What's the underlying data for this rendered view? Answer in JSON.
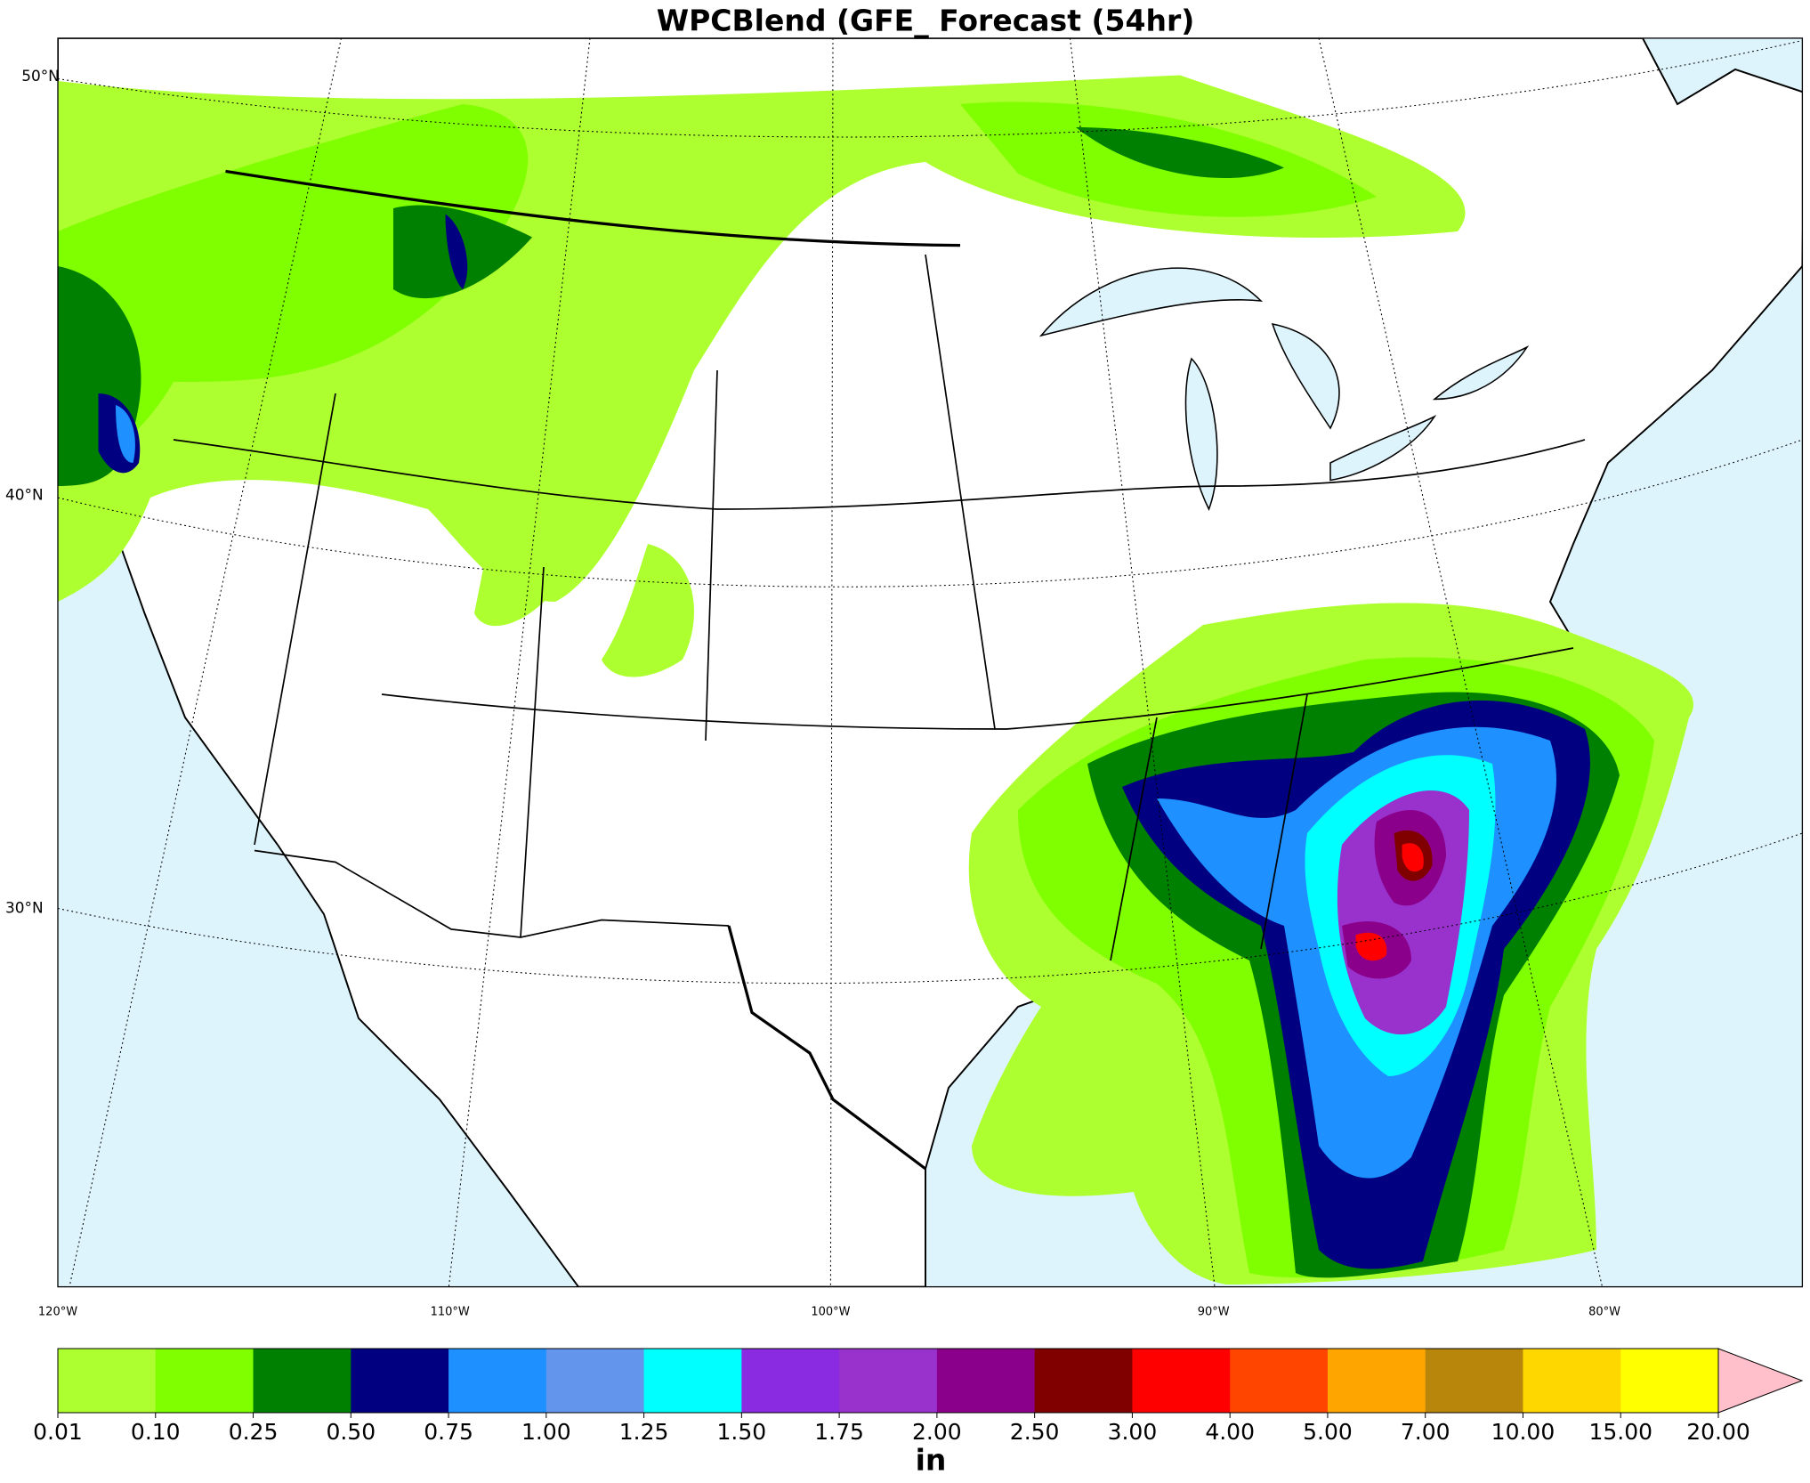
{
  "title": "WPCBlend (GFE_ Forecast (54hr)",
  "map": {
    "lat_labels": [
      "50°N",
      "40°N",
      "30°N"
    ],
    "lon_labels": [
      "120°W",
      "110°W",
      "100°W",
      "90°W",
      "80°W"
    ]
  },
  "colorbar": {
    "label": "in",
    "levels": [
      {
        "value": 0.01,
        "label": "0.01"
      },
      {
        "value": 0.1,
        "label": "0.10"
      },
      {
        "value": 0.25,
        "label": "0.25"
      },
      {
        "value": 0.5,
        "label": "0.50"
      },
      {
        "value": 0.75,
        "label": "0.75"
      },
      {
        "value": 1,
        "label": "1.00"
      },
      {
        "value": 1.25,
        "label": "1.25"
      },
      {
        "value": 1.5,
        "label": "1.50"
      },
      {
        "value": 1.75,
        "label": "1.75"
      },
      {
        "value": 2,
        "label": "2.00"
      },
      {
        "value": 2.5,
        "label": "2.50"
      },
      {
        "value": 3,
        "label": "3.00"
      },
      {
        "value": 4,
        "label": "4.00"
      },
      {
        "value": 5,
        "label": "5.00"
      },
      {
        "value": 7,
        "label": "7.00"
      },
      {
        "value": 10,
        "label": "10.00"
      },
      {
        "value": 15,
        "label": "15.00"
      },
      {
        "value": 20,
        "label": "20.00"
      }
    ],
    "colors": [
      "#adff2f",
      "#7fff00",
      "#008000",
      "#000080",
      "#1e90ff",
      "#6495ed",
      "#00ffff",
      "#8a2be2",
      "#9932cc",
      "#8b008b",
      "#800000",
      "#ff0000",
      "#ff4500",
      "#ffa500",
      "#b8860b",
      "#ffd700",
      "#ffff00"
    ],
    "extend_color": "#ffc0cb"
  }
}
